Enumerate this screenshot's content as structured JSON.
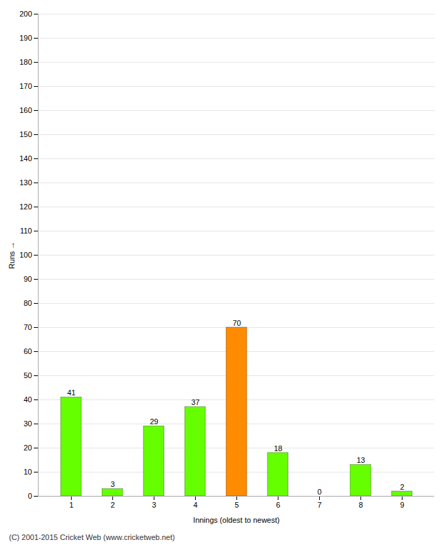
{
  "chart_data": {
    "type": "bar",
    "categories": [
      "1",
      "2",
      "3",
      "4",
      "5",
      "6",
      "7",
      "8",
      "9"
    ],
    "values": [
      41,
      3,
      29,
      37,
      70,
      18,
      0,
      13,
      2
    ],
    "colors": [
      "#66ff00",
      "#66ff00",
      "#66ff00",
      "#66ff00",
      "#ff8c00",
      "#66ff00",
      "#66ff00",
      "#66ff00",
      "#66ff00"
    ],
    "xlabel": "Innings (oldest to newest)",
    "ylabel": "Runs",
    "ylim": [
      0,
      200
    ],
    "yticks": [
      0,
      10,
      20,
      30,
      40,
      50,
      60,
      70,
      80,
      90,
      100,
      110,
      120,
      130,
      140,
      150,
      160,
      170,
      180,
      190,
      200
    ],
    "grid": true,
    "data_labels": true,
    "annotations": [
      "(C) 2001-2015 Cricket Web (www.cricketweb.net)"
    ]
  }
}
